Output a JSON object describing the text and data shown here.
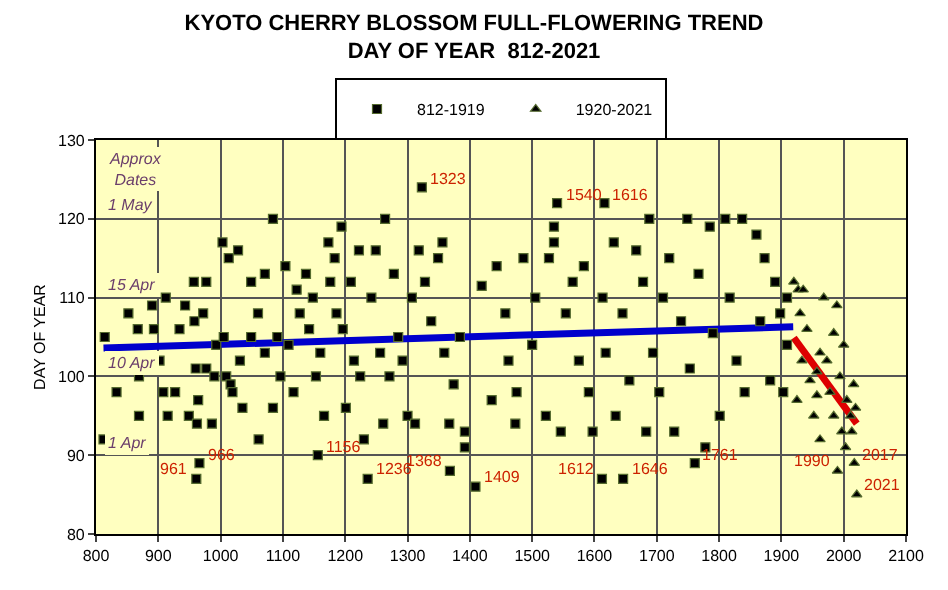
{
  "chart_data": {
    "type": "scatter",
    "title": "KYOTO CHERRY BLOSSOM FULL-FLOWERING TREND",
    "subtitle": "DAY OF YEAR  812-2021",
    "ylabel": "DAY OF YEAR",
    "xlim": [
      800,
      2100
    ],
    "xticks": [
      800,
      900,
      1000,
      1100,
      1200,
      1300,
      1400,
      1500,
      1600,
      1700,
      1800,
      1900,
      2000,
      2100
    ],
    "ylim": [
      80,
      130
    ],
    "yticks": [
      80,
      90,
      100,
      110,
      120,
      130
    ],
    "grid": true,
    "legend": "top",
    "series": [
      {
        "name": "812-1919",
        "marker": "square",
        "color": "#000000",
        "x": [
          814,
          812,
          833,
          852,
          867,
          869,
          869,
          890,
          893,
          902,
          912,
          908,
          915,
          927,
          934,
          943,
          949,
          957,
          958,
          960,
          964,
          962,
          966,
          961,
          977,
          972,
          977,
          986,
          990,
          993,
          1003,
          1005,
          1009,
          1013,
          1016,
          1019,
          1028,
          1031,
          1035,
          1049,
          1049,
          1060,
          1061,
          1071,
          1071,
          1084,
          1084,
          1091,
          1096,
          1104,
          1109,
          1117,
          1122,
          1127,
          1137,
          1142,
          1148,
          1153,
          1156,
          1160,
          1166,
          1173,
          1176,
          1183,
          1186,
          1194,
          1196,
          1201,
          1209,
          1214,
          1222,
          1224,
          1230,
          1236,
          1242,
          1249,
          1256,
          1261,
          1264,
          1271,
          1278,
          1285,
          1292,
          1300,
          1307,
          1312,
          1318,
          1323,
          1328,
          1338,
          1349,
          1356,
          1359,
          1367,
          1368,
          1374,
          1384,
          1409,
          1392,
          1392,
          1419,
          1435,
          1443,
          1457,
          1462,
          1473,
          1475,
          1486,
          1500,
          1505,
          1522,
          1527,
          1540,
          1535,
          1535,
          1546,
          1554,
          1565,
          1575,
          1583,
          1591,
          1597,
          1612,
          1616,
          1613,
          1618,
          1631,
          1634,
          1646,
          1645,
          1656,
          1667,
          1678,
          1683,
          1688,
          1694,
          1704,
          1710,
          1720,
          1728,
          1739,
          1749,
          1753,
          1761,
          1767,
          1778,
          1785,
          1790,
          1801,
          1810,
          1817,
          1828,
          1837,
          1841,
          1860,
          1866,
          1873,
          1882,
          1890,
          1898,
          1903,
          1909,
          1909
        ],
        "values": [
          105,
          92,
          98,
          108,
          106,
          100,
          95,
          109,
          106,
          102,
          110,
          98,
          95,
          98,
          106,
          109,
          95,
          112,
          107,
          101,
          97,
          94,
          89,
          87,
          112,
          108,
          101,
          94,
          100,
          104,
          117,
          105,
          100,
          115,
          99,
          98,
          116,
          102,
          96,
          112,
          105,
          108,
          92,
          113,
          103,
          120,
          96,
          105,
          100,
          114,
          104,
          98,
          111,
          108,
          113,
          106,
          110,
          100,
          90,
          103,
          95,
          117,
          112,
          115,
          108,
          119,
          106,
          96,
          112,
          102,
          116,
          100,
          92,
          87,
          110,
          116,
          103,
          94,
          120,
          100,
          113,
          105,
          102,
          95,
          110,
          94,
          116,
          124,
          112,
          107,
          115,
          117,
          103,
          94,
          88,
          99,
          105,
          86,
          91,
          93,
          111.5,
          97,
          114,
          108,
          102,
          94,
          98,
          115,
          104,
          110,
          95,
          115,
          122,
          119,
          117,
          93,
          108,
          112,
          102,
          114,
          98,
          93,
          87,
          122,
          110,
          103,
          117,
          95,
          87,
          108,
          99.5,
          116,
          112,
          93,
          120,
          103,
          98,
          110,
          115,
          93,
          107,
          120,
          101,
          89,
          113,
          91,
          119,
          105.5,
          95,
          120,
          110,
          102,
          120,
          98,
          118,
          107,
          115,
          99.5,
          112,
          108,
          98,
          104,
          110
        ]
      },
      {
        "name": "1920-2021",
        "marker": "triangle",
        "color": "#000000",
        "x": [
          1920,
          1927,
          1935,
          1930,
          1941,
          1933,
          1925,
          1946,
          1952,
          1957,
          1962,
          1968,
          1973,
          1978,
          1984,
          1989,
          1994,
          1990,
          1997,
          2003,
          2005,
          2011,
          2013,
          2016,
          2017,
          2019,
          2021,
          2000,
          1984,
          1962,
          1957
        ],
        "values": [
          112,
          111,
          111,
          108,
          106,
          102,
          97,
          99.5,
          95,
          97.6,
          92,
          110,
          102,
          98,
          95,
          109,
          100,
          88,
          93,
          91,
          97,
          95,
          93,
          99,
          89,
          96,
          85,
          104,
          105.5,
          103,
          100.6
        ]
      },
      {
        "type": "line",
        "color": "#0000cc",
        "x": [
          812,
          1919
        ],
        "values": [
          103.6,
          106.3
        ]
      },
      {
        "type": "line",
        "color": "#dd0000",
        "x": [
          1920,
          2021
        ],
        "values": [
          104.9,
          94
        ]
      }
    ],
    "annotations": [
      "Approx Dates",
      "1 May",
      "15 Apr",
      "10 Apr",
      "1 Apr",
      {
        "text": "1323",
        "x": 1323,
        "y": 124
      },
      {
        "text": "1540",
        "x": 1540,
        "y": 122
      },
      {
        "text": "1616",
        "x": 1616,
        "y": 122
      },
      {
        "text": "966",
        "x": 966,
        "y": 89
      },
      {
        "text": "961",
        "x": 961,
        "y": 87
      },
      {
        "text": "1156",
        "x": 1156,
        "y": 90
      },
      {
        "text": "1236",
        "x": 1236,
        "y": 87
      },
      {
        "text": "1368",
        "x": 1368,
        "y": 88
      },
      {
        "text": "1409",
        "x": 1409,
        "y": 86
      },
      {
        "text": "1612",
        "x": 1612,
        "y": 87
      },
      {
        "text": "1646",
        "x": 1646,
        "y": 87
      },
      {
        "text": "1761",
        "x": 1761,
        "y": 89
      },
      {
        "text": "1990",
        "x": 1990,
        "y": 88
      },
      {
        "text": "2017",
        "x": 2017,
        "y": 89
      },
      {
        "text": "2021",
        "x": 2021,
        "y": 85
      }
    ]
  }
}
